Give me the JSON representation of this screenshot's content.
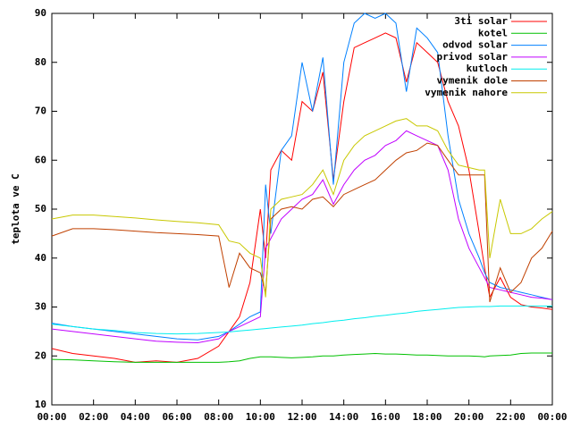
{
  "chart_data": {
    "type": "line",
    "y_label": "teplota ve C",
    "x": [
      0,
      1,
      2,
      3,
      4,
      5,
      6,
      7,
      8,
      8.5,
      9,
      9.5,
      10,
      10.25,
      10.5,
      11,
      11.5,
      12,
      12.5,
      13,
      13.5,
      14,
      14.5,
      15,
      15.5,
      16,
      16.5,
      17,
      17.5,
      18,
      18.5,
      19,
      19.5,
      20,
      20.5,
      20.75,
      21,
      21.5,
      22,
      22.5,
      23,
      23.5,
      24
    ],
    "series": [
      {
        "name": "3ti solar",
        "color": "#ff0000",
        "values": [
          21.5,
          20.5,
          20,
          19.5,
          18.7,
          19,
          18.7,
          19.5,
          22,
          25,
          28,
          35,
          50,
          40,
          58,
          62,
          60,
          72,
          70,
          78,
          56,
          72,
          83,
          84,
          85,
          86,
          85,
          76,
          84,
          82,
          80,
          72,
          67,
          58,
          45,
          38,
          32,
          36,
          32,
          30.5,
          30,
          29.8,
          29.5
        ]
      },
      {
        "name": "kotel",
        "color": "#00c000",
        "values": [
          19.3,
          19.2,
          19,
          18.8,
          18.7,
          18.7,
          18.7,
          18.7,
          18.7,
          18.8,
          19,
          19.5,
          19.8,
          19.8,
          19.8,
          19.7,
          19.6,
          19.7,
          19.8,
          20,
          20,
          20.2,
          20.3,
          20.4,
          20.5,
          20.4,
          20.4,
          20.3,
          20.2,
          20.2,
          20.1,
          20,
          20,
          20,
          19.9,
          19.8,
          20,
          20.1,
          20.2,
          20.5,
          20.6,
          20.6,
          20.6
        ]
      },
      {
        "name": "odvod solar",
        "color": "#0080ff",
        "values": [
          26.7,
          26,
          25.5,
          25,
          24.5,
          24,
          23.5,
          23.3,
          24,
          25,
          26.5,
          28,
          29,
          55,
          45,
          62,
          65,
          80,
          70,
          81,
          55,
          80,
          88,
          90,
          89,
          90,
          88,
          74,
          87,
          85,
          82,
          65,
          52,
          45,
          40,
          37,
          35,
          34,
          33.5,
          33,
          32.5,
          32,
          31.5
        ]
      },
      {
        "name": "privod solar",
        "color": "#c000ff",
        "values": [
          25.5,
          25,
          24.5,
          24,
          23.5,
          23,
          22.8,
          22.7,
          23.5,
          25,
          26,
          27,
          28,
          42,
          44,
          48,
          50,
          52,
          53,
          56,
          51,
          55,
          58,
          60,
          61,
          63,
          64,
          66,
          65,
          64,
          63,
          58,
          48,
          42,
          38,
          36,
          34,
          33.5,
          33,
          32.5,
          32,
          31.8,
          31.5
        ]
      },
      {
        "name": "kutloch",
        "color": "#00eeee",
        "values": [
          26.5,
          26,
          25.5,
          25.2,
          24.8,
          24.6,
          24.5,
          24.6,
          24.8,
          24.9,
          25.1,
          25.3,
          25.5,
          25.6,
          25.7,
          25.9,
          26.1,
          26.3,
          26.6,
          26.8,
          27.1,
          27.3,
          27.6,
          27.8,
          28.1,
          28.3,
          28.6,
          28.8,
          29.1,
          29.3,
          29.5,
          29.7,
          29.9,
          30,
          30.1,
          30.1,
          30.1,
          30.2,
          30.2,
          30.2,
          30.2,
          30.2,
          30.2
        ]
      },
      {
        "name": "vymenik dole",
        "color": "#c04000",
        "values": [
          44.5,
          46,
          46,
          45.8,
          45.5,
          45.2,
          45,
          44.8,
          44.5,
          34,
          41,
          38,
          37,
          33,
          48,
          50,
          50.5,
          50,
          52,
          52.5,
          50.5,
          53,
          54,
          55,
          56,
          58,
          60,
          61.5,
          62,
          63.5,
          63,
          60,
          57,
          57,
          57,
          57,
          31,
          38,
          33,
          35,
          40,
          42,
          45.5
        ]
      },
      {
        "name": "vymenik nahore",
        "color": "#c8c800",
        "values": [
          48,
          48.8,
          48.8,
          48.5,
          48.2,
          47.8,
          47.5,
          47.2,
          46.8,
          43.5,
          43,
          41,
          40,
          32,
          50,
          52,
          52.5,
          53,
          55,
          58,
          53,
          60,
          63,
          65,
          66,
          67,
          68,
          68.5,
          67,
          67,
          66,
          62,
          59,
          58.5,
          58,
          58,
          40,
          52,
          45,
          45,
          46,
          48,
          49.5
        ]
      }
    ],
    "xlim": [
      0,
      24
    ],
    "xticks": [
      {
        "value": 0,
        "label": "00:00"
      },
      {
        "value": 2,
        "label": "02:00"
      },
      {
        "value": 4,
        "label": "04:00"
      },
      {
        "value": 6,
        "label": "06:00"
      },
      {
        "value": 8,
        "label": "08:00"
      },
      {
        "value": 10,
        "label": "10:00"
      },
      {
        "value": 12,
        "label": "12:00"
      },
      {
        "value": 14,
        "label": "14:00"
      },
      {
        "value": 16,
        "label": "16:00"
      },
      {
        "value": 18,
        "label": "18:00"
      },
      {
        "value": 20,
        "label": "20:00"
      },
      {
        "value": 22,
        "label": "22:00"
      },
      {
        "value": 24,
        "label": "00:00"
      }
    ],
    "ylim": [
      10,
      90
    ],
    "yticks": [
      10,
      20,
      30,
      40,
      50,
      60,
      70,
      80,
      90
    ],
    "legend": "top-right"
  }
}
